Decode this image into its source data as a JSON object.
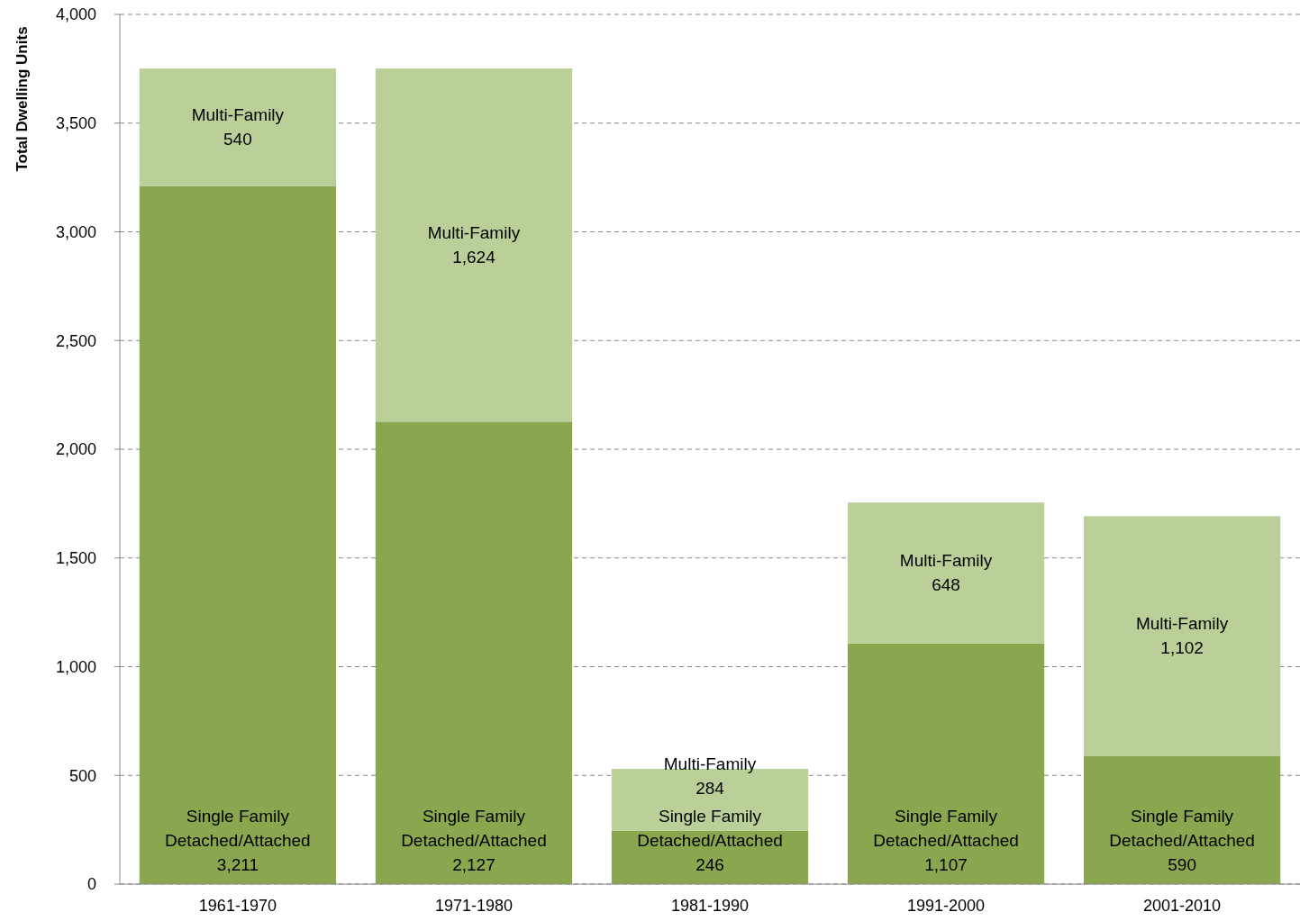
{
  "chart_data": {
    "type": "bar",
    "stacked": true,
    "ylabel": "Total Dwelling Units",
    "categories": [
      "1961-1970",
      "1971-1980",
      "1981-1990",
      "1991-2000",
      "2001-2010"
    ],
    "series": [
      {
        "name": "Single Family Detached/Attached",
        "color": "#8aa64e",
        "values": [
          3211,
          2127,
          246,
          1107,
          590
        ],
        "value_labels": [
          "3,211",
          "2,127",
          "246",
          "1,107",
          "590"
        ]
      },
      {
        "name": "Multi-Family",
        "color": "#bbcf98",
        "values": [
          540,
          1624,
          284,
          648,
          1102
        ],
        "value_labels": [
          "540",
          "1,624",
          "284",
          "648",
          "1,102"
        ]
      }
    ],
    "ylim": [
      0,
      4000
    ],
    "yticks": [
      {
        "value": 0,
        "label": "0"
      },
      {
        "value": 500,
        "label": "500"
      },
      {
        "value": 1000,
        "label": "1,000"
      },
      {
        "value": 1500,
        "label": "1,500"
      },
      {
        "value": 2000,
        "label": "2,000"
      },
      {
        "value": 2500,
        "label": "2,500"
      },
      {
        "value": 3000,
        "label": "3,000"
      },
      {
        "value": 3500,
        "label": "3,500"
      },
      {
        "value": 4000,
        "label": "4,000"
      }
    ],
    "grid": "y"
  }
}
